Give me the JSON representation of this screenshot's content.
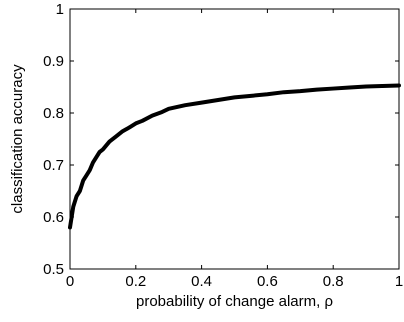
{
  "chart_data": {
    "type": "line",
    "title": "",
    "xlabel": "probability of change alarm, ρ",
    "ylabel": "classification accuracy",
    "xlim": [
      0,
      1
    ],
    "ylim": [
      0.5,
      1
    ],
    "xticks": [
      0,
      0.2,
      0.4,
      0.6,
      0.8,
      1
    ],
    "xtick_labels": [
      "0",
      "0.2",
      "0.4",
      "0.6",
      "0.8",
      "1"
    ],
    "yticks": [
      0.5,
      0.6,
      0.7,
      0.8,
      0.9,
      1
    ],
    "ytick_labels": [
      "0.5",
      "0.6",
      "0.7",
      "0.8",
      "0.9",
      "1"
    ],
    "grid": false,
    "legend": "none",
    "line_color": "#000000",
    "series": [
      {
        "x": [
          0,
          0.005,
          0.01,
          0.02,
          0.03,
          0.04,
          0.05,
          0.06,
          0.07,
          0.08,
          0.09,
          0.1,
          0.12,
          0.14,
          0.16,
          0.18,
          0.2,
          0.22,
          0.25,
          0.28,
          0.3,
          0.35,
          0.4,
          0.45,
          0.5,
          0.55,
          0.6,
          0.65,
          0.7,
          0.75,
          0.8,
          0.85,
          0.9,
          0.95,
          1.0
        ],
        "y": [
          0.58,
          0.6,
          0.62,
          0.64,
          0.65,
          0.67,
          0.68,
          0.69,
          0.705,
          0.715,
          0.725,
          0.73,
          0.745,
          0.755,
          0.765,
          0.772,
          0.78,
          0.785,
          0.795,
          0.802,
          0.808,
          0.815,
          0.82,
          0.825,
          0.83,
          0.833,
          0.836,
          0.84,
          0.842,
          0.845,
          0.847,
          0.849,
          0.851,
          0.852,
          0.853
        ]
      }
    ]
  }
}
